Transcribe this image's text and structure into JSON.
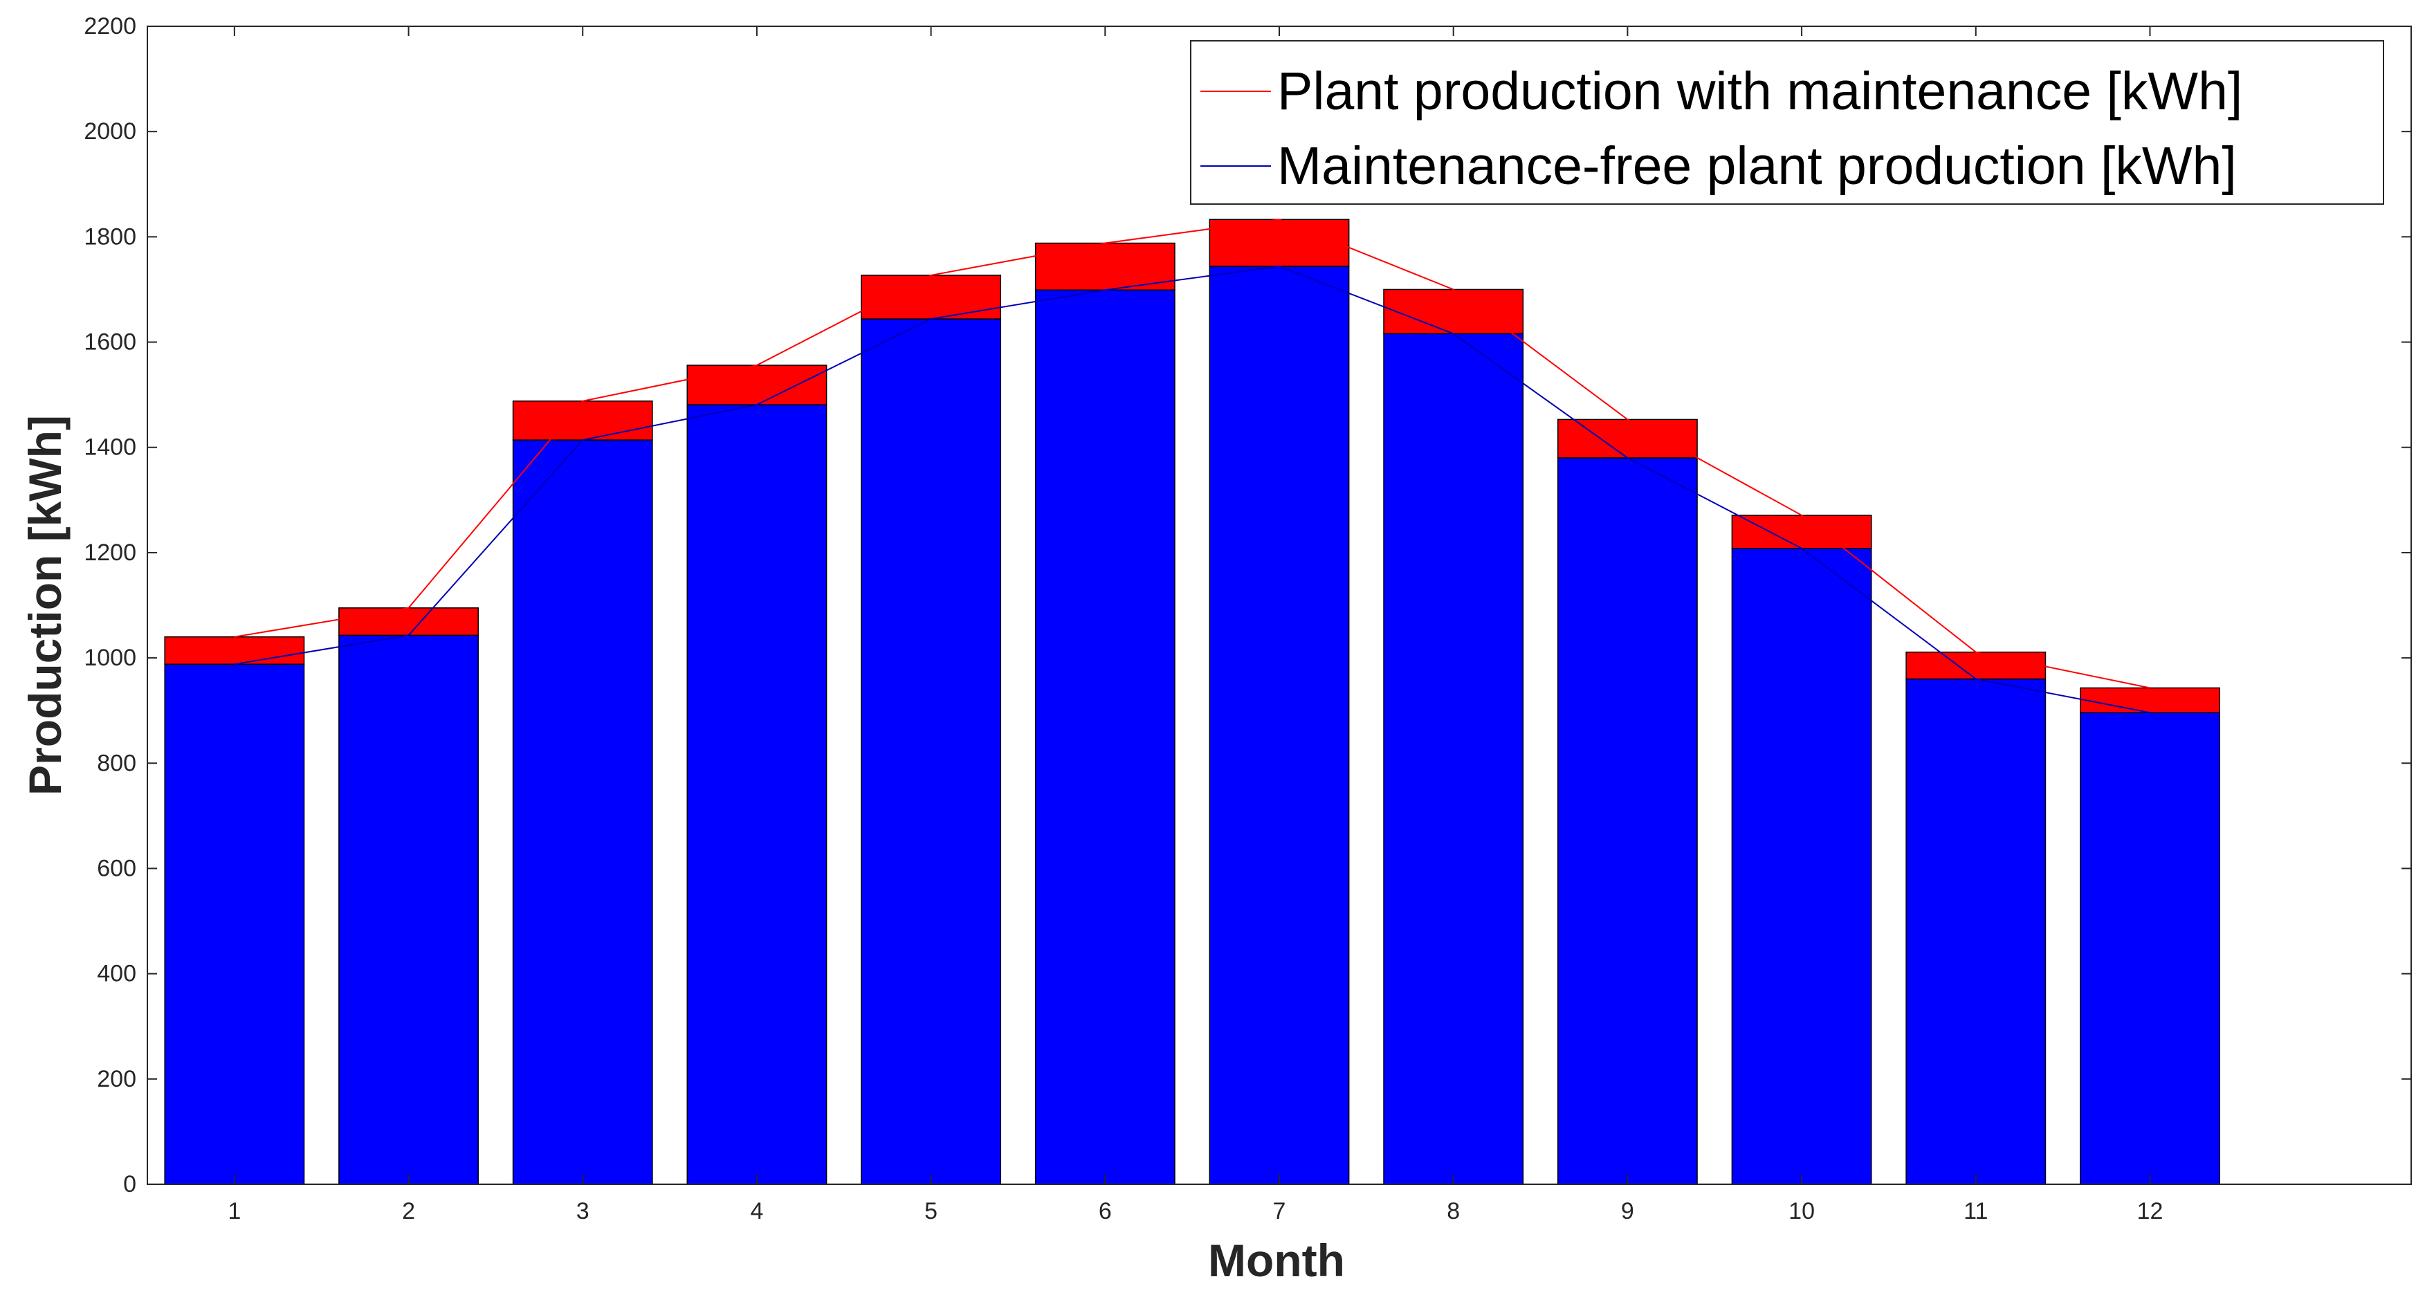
{
  "chart_data": {
    "type": "bar",
    "title": "",
    "xlabel": "Month",
    "ylabel": "Production [kWh]",
    "categories": [
      "1",
      "2",
      "3",
      "4",
      "5",
      "6",
      "7",
      "8",
      "9",
      "10",
      "11",
      "12"
    ],
    "ylim": [
      0,
      2200
    ],
    "yticks": [
      0,
      200,
      400,
      600,
      800,
      1000,
      1200,
      1400,
      1600,
      1800,
      2000,
      2200
    ],
    "grid": false,
    "legend_position": "top-right",
    "series": [
      {
        "name": "Plant production with maintenance [kWh]",
        "kind": "line",
        "color": "#ff0000",
        "values": [
          1040,
          1095,
          1488,
          1556,
          1727,
          1788,
          1833,
          1700,
          1453,
          1271,
          1011,
          943
        ]
      },
      {
        "name": "Maintenance-free plant production [kWh]",
        "kind": "line",
        "color": "#0000b4",
        "values": [
          988,
          1043,
          1414,
          1481,
          1644,
          1699,
          1744,
          1616,
          1380,
          1208,
          960,
          896
        ]
      }
    ],
    "bars": {
      "lower_color": "#0000ff",
      "upper_color": "#ff0000",
      "lower_values": [
        988,
        1043,
        1414,
        1481,
        1644,
        1699,
        1744,
        1616,
        1380,
        1208,
        960,
        896
      ],
      "total_values": [
        1040,
        1095,
        1488,
        1556,
        1727,
        1788,
        1833,
        1700,
        1453,
        1271,
        1011,
        943
      ]
    }
  }
}
